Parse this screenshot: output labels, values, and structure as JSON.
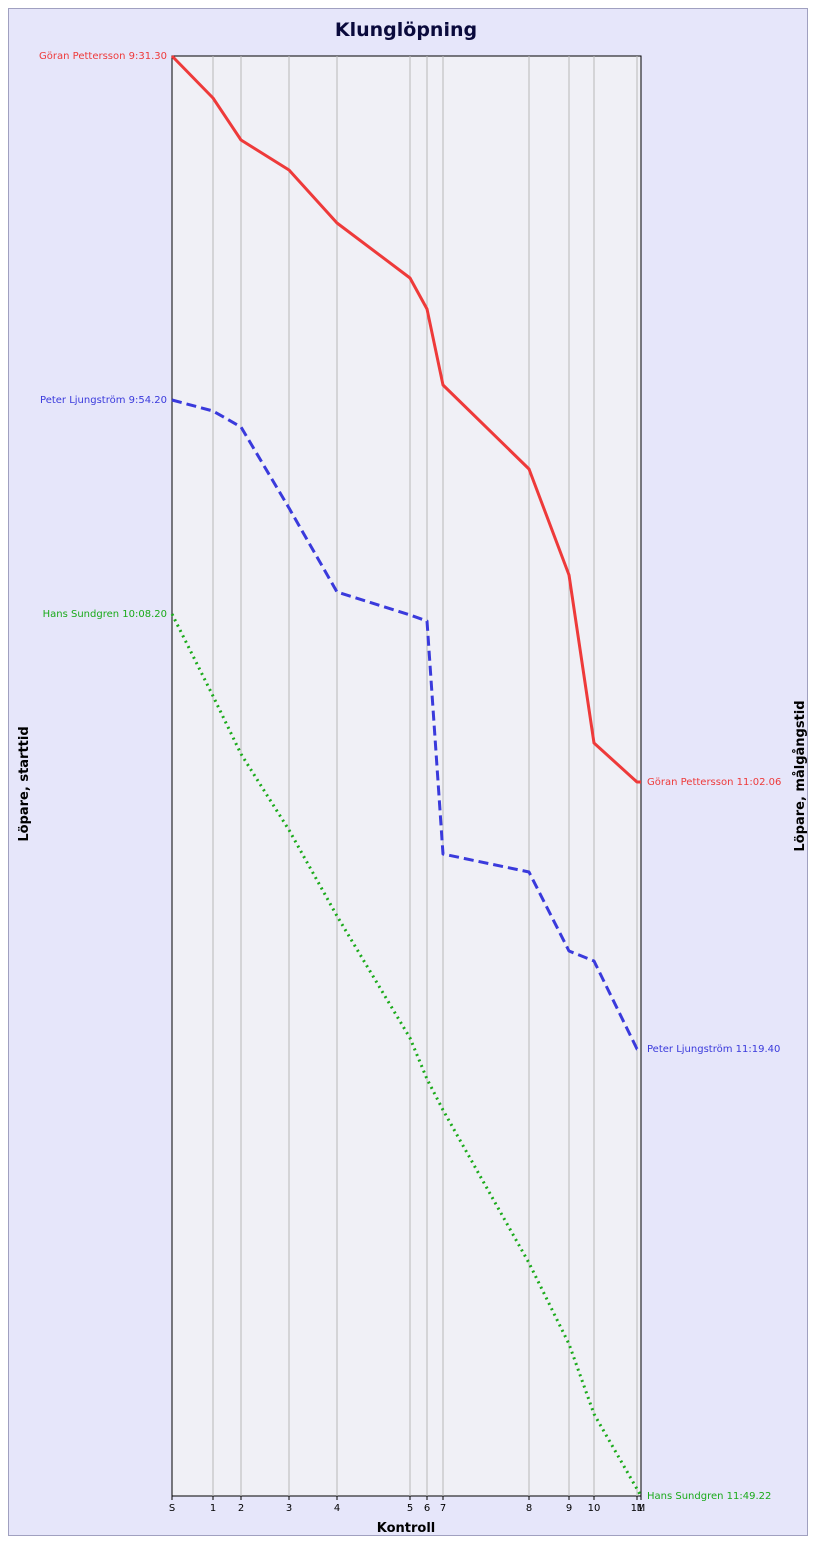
{
  "chart_data": {
    "type": "line",
    "title": "Klunglöpning",
    "xlabel": "Kontroll",
    "ylabel_left": "Löpare, starttid",
    "ylabel_right": "Löpare, målgångstid",
    "x_ticks": [
      {
        "label": "S",
        "pos": 0
      },
      {
        "label": "1",
        "pos": 41
      },
      {
        "label": "2",
        "pos": 69
      },
      {
        "label": "3",
        "pos": 117
      },
      {
        "label": "4",
        "pos": 165
      },
      {
        "label": "5",
        "pos": 238
      },
      {
        "label": "6",
        "pos": 255
      },
      {
        "label": "7",
        "pos": 271
      },
      {
        "label": "8",
        "pos": 357
      },
      {
        "label": "9",
        "pos": 397
      },
      {
        "label": "10",
        "pos": 422
      },
      {
        "label": "11",
        "pos": 465
      },
      {
        "label": "M",
        "pos": 469
      }
    ],
    "x_range": [
      0,
      469
    ],
    "y_range_minutes": [
      0,
      1440
    ],
    "y_axis_direction": "down",
    "grid": true,
    "series": [
      {
        "name": "Göran Pettersson",
        "start_label": "Göran Pettersson 9:31.30",
        "finish_label": "Göran Pettersson 11:02.06",
        "color": "#ee3a3a",
        "dash": "solid",
        "values": [
          0,
          42,
          84,
          114,
          167,
          222,
          253,
          329,
          413,
          519,
          687,
          726,
          726
        ]
      },
      {
        "name": "Peter Ljungström",
        "start_label": "Peter Ljungström 9:54.20",
        "finish_label": "Peter Ljungström 11:19.40",
        "color": "#3a3adc",
        "dash": "dashed",
        "values": [
          344,
          355,
          371,
          452,
          536,
          559,
          565,
          798,
          816,
          895,
          905,
          993,
          993
        ]
      },
      {
        "name": "Hans Sundgren",
        "start_label": "Hans Sundgren 10:08.20",
        "finish_label": "Hans Sundgren 11:49.22",
        "color": "#1aaa1a",
        "dash": "dotted",
        "values": [
          558,
          640,
          698,
          774,
          860,
          982,
          1023,
          1054,
          1207,
          1288,
          1358,
          1433,
          1440
        ]
      }
    ]
  }
}
